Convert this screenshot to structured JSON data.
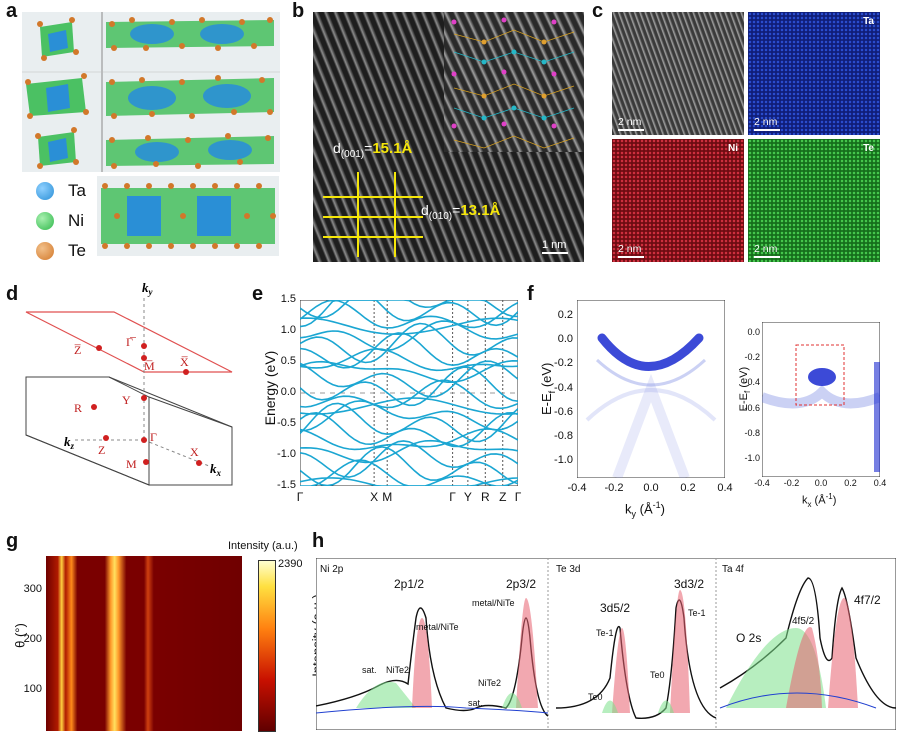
{
  "panels": {
    "a": "a",
    "b": "b",
    "c": "c",
    "d": "d",
    "e": "e",
    "f": "f",
    "g": "g",
    "h": "h"
  },
  "panel_a": {
    "legend": [
      {
        "label": "Ta",
        "color": "#2a8fd6"
      },
      {
        "label": "Ni",
        "color": "#2fb84a"
      },
      {
        "label": "Te",
        "color": "#d2782a"
      }
    ]
  },
  "panel_b": {
    "d001_prefix": "d",
    "d001_sub": "(001)",
    "d001_eq": "=",
    "d001_value": "15.1Å",
    "d010_prefix": "d",
    "d010_sub": "(010)",
    "d010_eq": "=",
    "d010_value": "13.1Å",
    "scale_bar": "1 nm",
    "accent": "#f5e60a"
  },
  "panel_c": {
    "tiles": [
      {
        "channel": "",
        "scale": "2 nm",
        "color": "#6a6a6a"
      },
      {
        "channel": "Ta",
        "scale": "2 nm",
        "color": "#1632a8"
      },
      {
        "channel": "Ni",
        "scale": "2 nm",
        "color": "#a8141c"
      },
      {
        "channel": "Te",
        "scale": "2 nm",
        "color": "#27a032"
      }
    ]
  },
  "panel_d": {
    "axis_y": "k",
    "axis_y_sub": "y",
    "axis_z": "k",
    "axis_z_sub": "z",
    "axis_x": "k",
    "axis_x_sub": "x",
    "surface_points": [
      "Z̅",
      "Γ̅",
      "M̅",
      "X̅"
    ],
    "bulk_points": [
      "R",
      "Y",
      "Γ",
      "Z",
      "M",
      "X"
    ],
    "surface_color": "#e05050"
  },
  "panel_e": {
    "ylabel": "Energy (eV)",
    "yticks": [
      "1.5",
      "1.0",
      "0.5",
      "0.0",
      "-0.5",
      "-1.0",
      "-1.5"
    ],
    "xticks": [
      "Γ",
      "X",
      "M",
      "Γ",
      "Y",
      "R",
      "Z",
      "Γ"
    ],
    "line_color": "#1ba6d2"
  },
  "panel_f": {
    "ylabel_left": "E-E",
    "ylabel_left_sub": "f",
    "ylabel_left_unit": " (eV)",
    "yticks_left": [
      "0.2",
      "0.0",
      "-0.2",
      "-0.4",
      "-0.6",
      "-0.8",
      "-1.0"
    ],
    "xticks_left": [
      "-0.4",
      "-0.2",
      "0.0",
      "0.2",
      "0.4"
    ],
    "xlabel_left": "k",
    "xlabel_left_sub": "y",
    "xlabel_left_unit": " (Å",
    "xlabel_left_sup": "-1",
    "xlabel_left_close": ")",
    "ylabel_right": "E-E",
    "ylabel_right_sub": "f",
    "ylabel_right_unit": " (eV)",
    "yticks_right": [
      "0.0",
      "-0.2",
      "-0.4",
      "-0.6",
      "-0.8",
      "-1.0"
    ],
    "xticks_right": [
      "-0.4",
      "-0.2",
      "0.0",
      "0.2",
      "0.4"
    ],
    "xlabel_right": "k",
    "xlabel_right_sub": "x",
    "xlabel_right_unit": " (Å",
    "xlabel_right_sup": "-1",
    "xlabel_right_close": ")"
  },
  "panel_g": {
    "ylabel": "θ (°)",
    "yticks": [
      "300",
      "200",
      "100"
    ],
    "colorbar_title": "Intensity (a.u.)",
    "colorbar_max": "2390"
  },
  "panel_h": {
    "ylabel": "Intensity (a.u.)",
    "sections": [
      {
        "title": "Ni 2p",
        "labels": [
          "2p1/2",
          "metal/NiTe",
          "sat.",
          "NiTe2",
          "sat.",
          "2p3/2",
          "metal/NiTe",
          "NiTe2"
        ]
      },
      {
        "title": "Te 3d",
        "labels": [
          "3d5/2",
          "Te-1",
          "Te0",
          "3d3/2",
          "Te-1",
          "Te0"
        ]
      },
      {
        "title": "Ta 4f",
        "labels": [
          "O 2s",
          "4f5/2",
          "4f7/2"
        ]
      }
    ]
  },
  "chart_data": [
    {
      "type": "line",
      "title": "",
      "ylabel": "Energy (eV)",
      "xlabel": "",
      "categories": [
        "Γ",
        "X",
        "M",
        "Γ",
        "Y",
        "R",
        "Z",
        "Γ"
      ],
      "ylim": [
        -1.5,
        1.5
      ],
      "grid": false
    },
    {
      "type": "heatmap",
      "xlabel": "k_y (Å^-1)",
      "ylabel": "E-E_f (eV)",
      "xlim": [
        -0.4,
        0.4
      ],
      "ylim": [
        -1.1,
        0.2
      ]
    },
    {
      "type": "heatmap",
      "xlabel": "k_x (Å^-1)",
      "ylabel": "E-E_f (eV)",
      "xlim": [
        -0.4,
        0.4
      ],
      "ylim": [
        -1.1,
        0.1
      ]
    },
    {
      "type": "heatmap",
      "ylabel": "θ (°)",
      "yticks": [
        100,
        200,
        300
      ],
      "colorbar_range": [
        0,
        2390
      ]
    },
    {
      "type": "line",
      "ylabel": "Intensity (a.u.)",
      "series": [
        {
          "name": "Ni 2p"
        },
        {
          "name": "Te 3d"
        },
        {
          "name": "Ta 4f"
        }
      ]
    }
  ]
}
